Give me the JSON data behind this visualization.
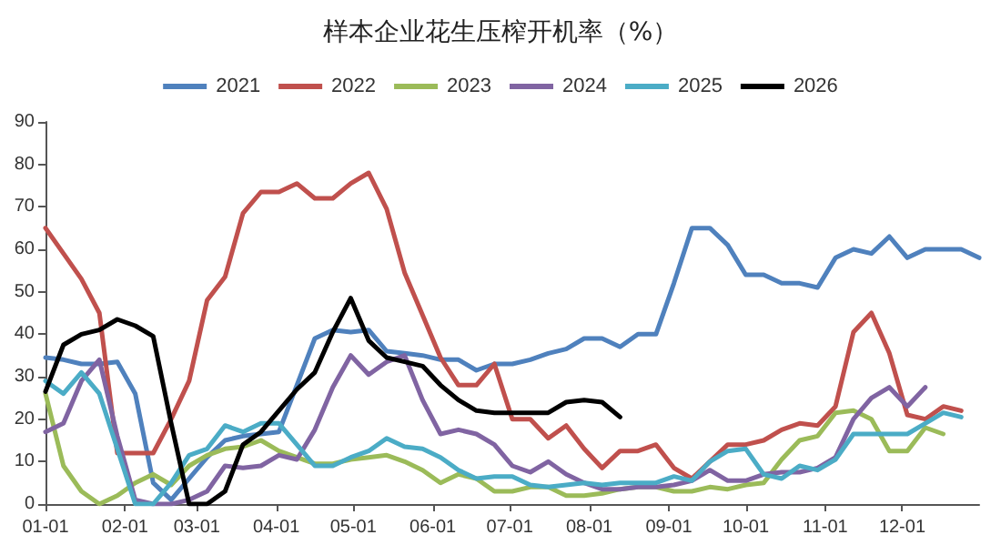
{
  "chart_data": {
    "type": "line",
    "title": "样本企业花生压榨开机率（%）",
    "legend": "top",
    "grid": false,
    "marker": "none",
    "line_style": "solid",
    "x": [
      "--01-01",
      "--01-08",
      "--01-15",
      "--01-22",
      "--01-29",
      "--02-05",
      "--02-12",
      "--02-19",
      "--02-26",
      "--03-05",
      "--03-12",
      "--03-19",
      "--03-26",
      "--04-02",
      "--04-09",
      "--04-16",
      "--04-23",
      "--04-30",
      "--05-07",
      "--05-14",
      "--05-21",
      "--05-28",
      "--06-04",
      "--06-11",
      "--06-18",
      "--06-25",
      "--07-02",
      "--07-09",
      "--07-16",
      "--07-23",
      "--07-30",
      "--08-06",
      "--08-13",
      "--08-20",
      "--08-27",
      "--09-03",
      "--09-10",
      "--09-17",
      "--09-24",
      "--10-01",
      "--10-08",
      "--10-15",
      "--10-22",
      "--10-29",
      "--11-05",
      "--11-12",
      "--11-19",
      "--11-26",
      "--12-03",
      "--12-10",
      "--12-17",
      "--12-24",
      "--12-31"
    ],
    "xlim": [
      "--01-01",
      "--12-31"
    ],
    "xticks": [
      {
        "value": "--01-01",
        "label": "01-01"
      },
      {
        "value": "--02-01",
        "label": "02-01"
      },
      {
        "value": "--03-01",
        "label": "03-01"
      },
      {
        "value": "--04-01",
        "label": "04-01"
      },
      {
        "value": "--05-01",
        "label": "05-01"
      },
      {
        "value": "--06-01",
        "label": "06-01"
      },
      {
        "value": "--07-01",
        "label": "07-01"
      },
      {
        "value": "--08-01",
        "label": "08-01"
      },
      {
        "value": "--09-01",
        "label": "09-01"
      },
      {
        "value": "--10-01",
        "label": "10-01"
      },
      {
        "value": "--11-01",
        "label": "11-01"
      },
      {
        "value": "--12-01",
        "label": "12-01"
      }
    ],
    "ylim": [
      0,
      90
    ],
    "yticks": [
      0,
      10,
      20,
      30,
      40,
      50,
      60,
      70,
      80,
      90
    ],
    "series": [
      {
        "name": "2021",
        "color": "#4f81bd",
        "values": [
          34.5,
          34,
          33,
          33,
          33.5,
          26,
          5,
          1,
          6,
          11,
          15,
          16,
          16.5,
          17,
          28,
          39,
          41,
          40.5,
          41,
          36,
          35.5,
          35,
          34,
          34,
          31.5,
          33,
          33,
          34,
          35.5,
          36.5,
          39,
          39,
          37,
          40,
          40,
          52,
          65,
          65,
          61,
          54,
          54,
          52,
          52,
          51,
          58,
          60,
          59,
          63,
          58,
          60,
          60,
          60,
          58
        ]
      },
      {
        "name": "2022",
        "color": "#c0504d",
        "values": [
          65,
          59,
          53,
          45,
          12,
          12,
          12,
          20,
          29,
          48,
          53.5,
          68.5,
          73.5,
          73.5,
          75.5,
          72,
          72,
          75.5,
          78,
          69.5,
          54.5,
          44.5,
          34.5,
          28,
          28,
          33,
          20,
          20,
          15.5,
          18.5,
          13,
          8.5,
          12.5,
          12.5,
          14,
          8.5,
          6,
          10,
          14,
          14,
          15,
          17.5,
          19,
          18.5,
          23,
          40.5,
          45,
          35.5,
          21,
          20,
          23,
          22,
          null
        ]
      },
      {
        "name": "2023",
        "color": "#9bbb59",
        "values": [
          26,
          9,
          3,
          0,
          2,
          5,
          7,
          4.5,
          9,
          11.5,
          13,
          13.5,
          15,
          12.5,
          11,
          9.5,
          9.5,
          10.5,
          11,
          11.5,
          10,
          8,
          5,
          7,
          6,
          3,
          3,
          4,
          4,
          2,
          2,
          2.5,
          3.5,
          4,
          4,
          3,
          3,
          4,
          3.5,
          4.5,
          5,
          10.5,
          15,
          16,
          21.5,
          22,
          20,
          12.5,
          12.5,
          18,
          16.5,
          null,
          null
        ]
      },
      {
        "name": "2024",
        "color": "#8064a2",
        "values": [
          17,
          19,
          29,
          34,
          16,
          1,
          0,
          0,
          1,
          3,
          9,
          8.5,
          9,
          11.5,
          10.5,
          17.5,
          27.5,
          35,
          30.5,
          33.5,
          35,
          24.5,
          16.5,
          17.5,
          16.5,
          14,
          9,
          7.5,
          10,
          7,
          5,
          3.5,
          3.5,
          4,
          4,
          4.5,
          5.5,
          8,
          5.5,
          5.5,
          7,
          7.5,
          7.5,
          8.5,
          11,
          20,
          25,
          27.5,
          23,
          27.5,
          null,
          null,
          null
        ]
      },
      {
        "name": "2025",
        "color": "#4bacc6",
        "values": [
          29,
          26,
          31,
          26,
          13,
          0,
          0,
          5,
          11.5,
          13,
          18.5,
          17,
          19,
          19,
          14,
          9,
          9,
          11,
          12.5,
          15.5,
          13.5,
          13,
          11,
          8,
          6,
          6.5,
          6.5,
          4.5,
          4,
          4.5,
          5,
          4.5,
          5,
          5,
          5,
          6.5,
          5.5,
          10,
          12.5,
          13,
          7,
          6,
          9,
          8,
          10.5,
          16.5,
          16.5,
          16.5,
          16.5,
          19,
          21.5,
          20.5,
          null
        ]
      },
      {
        "name": "2026",
        "color": "#000000",
        "values": [
          26.5,
          37.5,
          40,
          41,
          43.5,
          42,
          39.5,
          19,
          0,
          0,
          3,
          14,
          17,
          22,
          27,
          31,
          40.5,
          48.5,
          38.5,
          34.5,
          33.5,
          32.5,
          28,
          24.5,
          22,
          21.5,
          21.5,
          21.5,
          21.5,
          24,
          24.5,
          24,
          20.5,
          null,
          null,
          null,
          null,
          null,
          null,
          null,
          null,
          null,
          null,
          null,
          null,
          null,
          null,
          null,
          null,
          null,
          null,
          null,
          null
        ]
      }
    ]
  }
}
